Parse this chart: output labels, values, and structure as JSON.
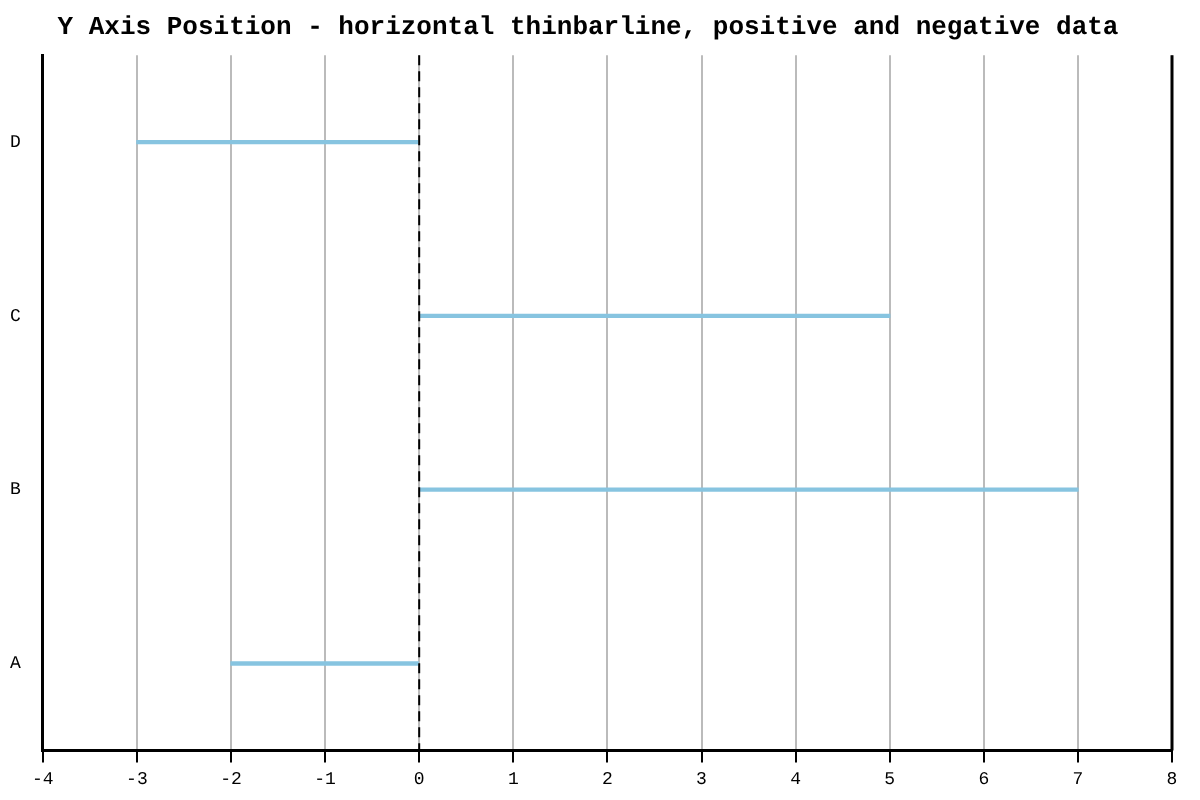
{
  "chart_data": {
    "type": "bar",
    "orientation": "horizontal",
    "title": "Y Axis Position - horizontal thinbarline, positive and negative data",
    "categories": [
      "D",
      "C",
      "B",
      "A"
    ],
    "values": [
      -3,
      5,
      7,
      -2
    ],
    "color": "#87c4e0",
    "xlim": [
      -4,
      8
    ],
    "xticks": [
      -4,
      -3,
      -2,
      -1,
      0,
      1,
      2,
      3,
      4,
      5,
      6,
      7,
      8
    ],
    "grid": "x",
    "legend": false,
    "ref_lines": [
      {
        "axis": "x",
        "value": 0,
        "color": "#000000",
        "line_style": "dashed"
      }
    ]
  }
}
